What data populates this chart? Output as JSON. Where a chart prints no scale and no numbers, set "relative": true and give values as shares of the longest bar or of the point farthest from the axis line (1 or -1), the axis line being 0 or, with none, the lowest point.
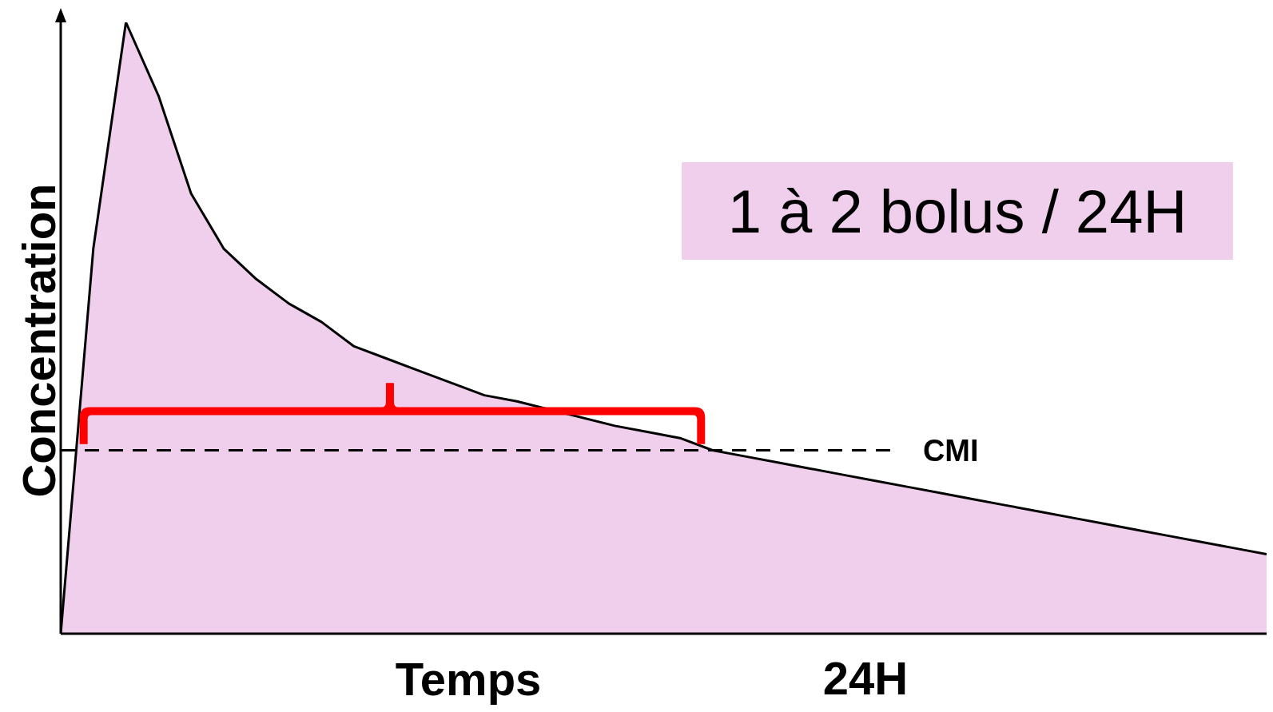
{
  "chart_data": {
    "type": "area",
    "relative": true,
    "xlabel": "Temps",
    "ylabel": "Concentration",
    "categories": [
      null,
      null,
      null,
      null,
      null,
      null,
      null,
      null,
      null,
      null,
      null,
      null,
      null,
      null,
      null,
      null,
      null,
      null,
      null,
      null,
      null,
      null,
      null,
      null,
      null,
      null,
      null,
      null,
      null,
      null,
      null,
      null,
      null,
      null,
      null,
      null,
      null,
      null
    ],
    "series": [
      {
        "color": "#f0cfec",
        "values": [
          0,
          0.63,
          1.0,
          0.88,
          0.72,
          0.63,
          0.58,
          0.54,
          0.51,
          0.47,
          0.45,
          0.43,
          0.41,
          0.39,
          0.38,
          null,
          null,
          0.34,
          0.33,
          0.32,
          0.3,
          0.29,
          0.28,
          0.27,
          0.26,
          0.25,
          0.24,
          0.23,
          0.22,
          0.21,
          0.2,
          0.19,
          0.18,
          0.17,
          0.16,
          0.15,
          0.14,
          0.13
        ]
      }
    ],
    "ref_lines": [
      {
        "axis": "y",
        "value": 0.3,
        "label": "CMI",
        "color": "#000000",
        "line_style": "dashed"
      }
    ],
    "annotations": [
      "1 à 2 bolus / 24H",
      "24H"
    ],
    "legend": false,
    "grid": false
  }
}
